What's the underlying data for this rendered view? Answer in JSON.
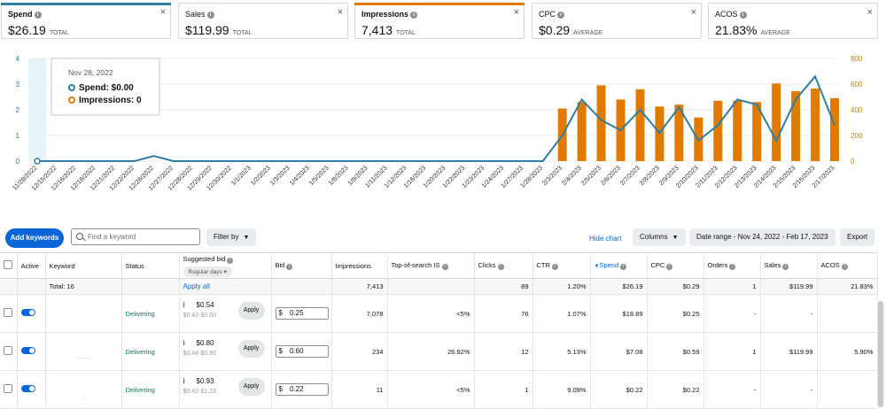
{
  "metrics": [
    {
      "name": "Spend",
      "value": "$26.19",
      "suffix": "TOTAL",
      "accent": "#2c7ea3",
      "active": true
    },
    {
      "name": "Sales",
      "value": "$119.99",
      "suffix": "TOTAL",
      "accent": "",
      "active": false
    },
    {
      "name": "Impressions",
      "value": "7,413",
      "suffix": "TOTAL",
      "accent": "#e07b00",
      "active": true
    },
    {
      "name": "CPC",
      "value": "$0.29",
      "suffix": "AVERAGE",
      "accent": "",
      "active": false
    },
    {
      "name": "ACOS",
      "value": "21.83%",
      "suffix": "AVERAGE",
      "accent": "",
      "active": false
    }
  ],
  "close_glyph": "×",
  "info_glyph": "i",
  "tooltip": {
    "date": "Nov 28, 2022",
    "spend_label": "Spend: $0.00",
    "impr_label": "Impressions: 0"
  },
  "chart_data": {
    "type": "bar+line",
    "x": [
      "11/28/2022",
      "12/15/2022",
      "12/16/2022",
      "12/18/2022",
      "12/21/2022",
      "12/22/2022",
      "12/26/2022",
      "12/27/2022",
      "12/28/2022",
      "12/29/2022",
      "12/30/2022",
      "1/1/2023",
      "1/2/2023",
      "1/3/2023",
      "1/4/2023",
      "1/5/2023",
      "1/8/2023",
      "1/9/2023",
      "1/11/2023",
      "1/12/2023",
      "1/16/2023",
      "1/20/2023",
      "1/22/2023",
      "1/23/2023",
      "1/24/2023",
      "1/27/2023",
      "1/28/2023",
      "2/3/2023",
      "2/4/2023",
      "2/5/2023",
      "2/6/2023",
      "2/7/2023",
      "2/8/2023",
      "2/9/2023",
      "2/10/2023",
      "2/11/2023",
      "2/12/2023",
      "2/13/2023",
      "2/14/2023",
      "2/15/2023",
      "2/16/2023",
      "2/17/2023"
    ],
    "series": [
      {
        "name": "Spend",
        "axis": "left",
        "kind": "line",
        "color": "#2c7ea3",
        "values": [
          0,
          0,
          0,
          0,
          0,
          0,
          0.2,
          0,
          0,
          0,
          0,
          0,
          0,
          0,
          0,
          0,
          0,
          0,
          0,
          0,
          0,
          0,
          0,
          0,
          0,
          0,
          0,
          1.0,
          2.4,
          1.6,
          1.2,
          2.0,
          1.1,
          2.1,
          0.8,
          1.4,
          2.4,
          2.2,
          0.8,
          2.4,
          3.3,
          1.4
        ]
      },
      {
        "name": "Impressions",
        "axis": "right",
        "kind": "bar",
        "color": "#e07b00",
        "values": [
          0,
          0,
          0,
          0,
          0,
          0,
          0,
          0,
          0,
          0,
          0,
          0,
          0,
          0,
          0,
          0,
          0,
          0,
          0,
          0,
          0,
          0,
          0,
          0,
          0,
          0,
          0,
          410,
          460,
          590,
          480,
          560,
          425,
          440,
          340,
          470,
          470,
          460,
          605,
          545,
          565,
          490
        ]
      }
    ],
    "y_left": {
      "min": 0,
      "max": 4,
      "ticks": [
        0,
        1,
        2,
        3,
        4
      ]
    },
    "y_right": {
      "min": 0,
      "max": 800,
      "ticks": [
        0,
        200,
        400,
        600,
        800
      ]
    },
    "highlight_index": 0
  },
  "toolbar": {
    "add_keywords": "Add keywords",
    "search_placeholder": "Find a keyword",
    "filter_by": "Filter by",
    "hide_chart": "Hide chart",
    "columns": "Columns",
    "date_range": "Date range - Nov 24, 2022 - Feb 17, 2023",
    "export": "Export"
  },
  "table": {
    "headers": {
      "active": "Active",
      "keyword": "Keyword",
      "status": "Status",
      "suggested_bid": "Suggested bid",
      "regular_days": "Regular days",
      "bid": "Bid",
      "impressions": "Impressions",
      "top_is": "Top-of-search IS",
      "clicks": "Clicks",
      "ctr": "CTR",
      "spend": "Spend",
      "cpc": "CPC",
      "orders": "Orders",
      "sales": "Sales",
      "acos": "ACOS"
    },
    "total": {
      "label": "Total: 16",
      "apply_all": "Apply all",
      "impressions": "7,413",
      "clicks": "89",
      "ctr": "1.20%",
      "spend": "$26.19",
      "cpc": "$0.29",
      "orders": "1",
      "sales": "$119.99",
      "acos": "21.83%"
    },
    "apply_label": "Apply",
    "currency": "$",
    "rows": [
      {
        "keyword": "",
        "status": "Delivering",
        "sugg": "$0.54",
        "range": "$0.42-$0.60",
        "bid": "0.25",
        "impressions": "7,078",
        "top_is": "<5%",
        "clicks": "76",
        "ctr": "1.07%",
        "spend": "$18.89",
        "cpc": "$0.25",
        "orders": "-",
        "sales": "-",
        "acos": ""
      },
      {
        "keyword": "··· ·····, ···",
        "status": "Delivering",
        "sugg": "$0.80",
        "range": "$0.44-$0.90",
        "bid": "0.60",
        "impressions": "234",
        "top_is": "26.92%",
        "clicks": "12",
        "ctr": "5.13%",
        "spend": "$7.08",
        "cpc": "$0.59",
        "orders": "1",
        "sales": "$119.99",
        "acos": "5.90%"
      },
      {
        "keyword": "··",
        "status": "Delivering",
        "sugg": "$0.93",
        "range": "$0.42-$1.23",
        "bid": "0.22",
        "impressions": "11",
        "top_is": "<5%",
        "clicks": "1",
        "ctr": "9.09%",
        "spend": "$0.22",
        "cpc": "$0.22",
        "orders": "-",
        "sales": "-",
        "acos": ""
      }
    ]
  }
}
